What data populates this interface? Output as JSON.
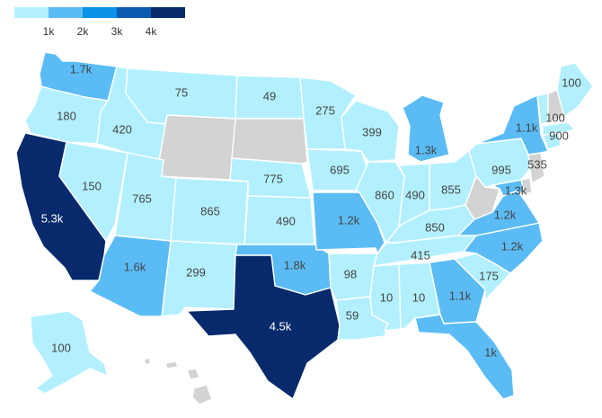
{
  "legend": {
    "colors": [
      "#b3f0ff",
      "#5bbcf5",
      "#0a91e8",
      "#0a5bb0",
      "#062a6b"
    ],
    "ticks": [
      "1k",
      "2k",
      "3k",
      "4k"
    ]
  },
  "palette": {
    "no_data": "#d3d3d3",
    "border": "#ffffff",
    "label_dark": "#444444",
    "label_light": "#ffffff"
  },
  "chart_data": {
    "type": "choropleth",
    "region": "United States",
    "thresholds": [
      1000,
      2000,
      3000,
      4000
    ],
    "states": [
      {
        "code": "WA",
        "label": "1.7k",
        "value": 1700
      },
      {
        "code": "OR",
        "label": "180",
        "value": 180
      },
      {
        "code": "CA",
        "label": "5.3k",
        "value": 5300
      },
      {
        "code": "NV",
        "label": "150",
        "value": 150
      },
      {
        "code": "ID",
        "label": "420",
        "value": 420
      },
      {
        "code": "MT",
        "label": "75",
        "value": 75
      },
      {
        "code": "WY",
        "label": "",
        "value": null
      },
      {
        "code": "UT",
        "label": "765",
        "value": 765
      },
      {
        "code": "AZ",
        "label": "1.6k",
        "value": 1600
      },
      {
        "code": "CO",
        "label": "865",
        "value": 865
      },
      {
        "code": "NM",
        "label": "299",
        "value": 299
      },
      {
        "code": "ND",
        "label": "49",
        "value": 49
      },
      {
        "code": "SD",
        "label": "",
        "value": null
      },
      {
        "code": "NE",
        "label": "775",
        "value": 775
      },
      {
        "code": "KS",
        "label": "490",
        "value": 490
      },
      {
        "code": "OK",
        "label": "1.8k",
        "value": 1800
      },
      {
        "code": "TX",
        "label": "4.5k",
        "value": 4500
      },
      {
        "code": "MN",
        "label": "275",
        "value": 275
      },
      {
        "code": "IA",
        "label": "695",
        "value": 695
      },
      {
        "code": "MO",
        "label": "1.2k",
        "value": 1200
      },
      {
        "code": "AR",
        "label": "98",
        "value": 98
      },
      {
        "code": "LA",
        "label": "59",
        "value": 59
      },
      {
        "code": "WI",
        "label": "399",
        "value": 399
      },
      {
        "code": "IL",
        "label": "860",
        "value": 860
      },
      {
        "code": "MI",
        "label": "1.3k",
        "value": 1300
      },
      {
        "code": "IN",
        "label": "490",
        "value": 490
      },
      {
        "code": "OH",
        "label": "855",
        "value": 855
      },
      {
        "code": "KY",
        "label": "850",
        "value": 850
      },
      {
        "code": "TN",
        "label": "415",
        "value": 415
      },
      {
        "code": "MS",
        "label": "10",
        "value": 10
      },
      {
        "code": "AL",
        "label": "10",
        "value": 10
      },
      {
        "code": "GA",
        "label": "1.1k",
        "value": 1100
      },
      {
        "code": "FL",
        "label": "1k",
        "value": 1000
      },
      {
        "code": "SC",
        "label": "175",
        "value": 175
      },
      {
        "code": "NC",
        "label": "1.2k",
        "value": 1200
      },
      {
        "code": "VA",
        "label": "1.2k",
        "value": 1200
      },
      {
        "code": "WV",
        "label": "",
        "value": null
      },
      {
        "code": "MD",
        "label": "1.3k",
        "value": 1300
      },
      {
        "code": "DE",
        "label": "",
        "value": null
      },
      {
        "code": "NJ",
        "label": "",
        "value": null
      },
      {
        "code": "PA",
        "label": "995",
        "value": 995
      },
      {
        "code": "NY",
        "label": "1.1k",
        "value": 1100
      },
      {
        "code": "CT",
        "label": "535",
        "value": 535
      },
      {
        "code": "MA",
        "label": "900",
        "value": 900
      },
      {
        "code": "VT",
        "label": "100",
        "value": 100
      },
      {
        "code": "NH",
        "label": "",
        "value": null
      },
      {
        "code": "ME",
        "label": "100",
        "value": 100
      },
      {
        "code": "AK",
        "label": "100",
        "value": 100
      },
      {
        "code": "HI",
        "label": "",
        "value": null
      }
    ]
  }
}
